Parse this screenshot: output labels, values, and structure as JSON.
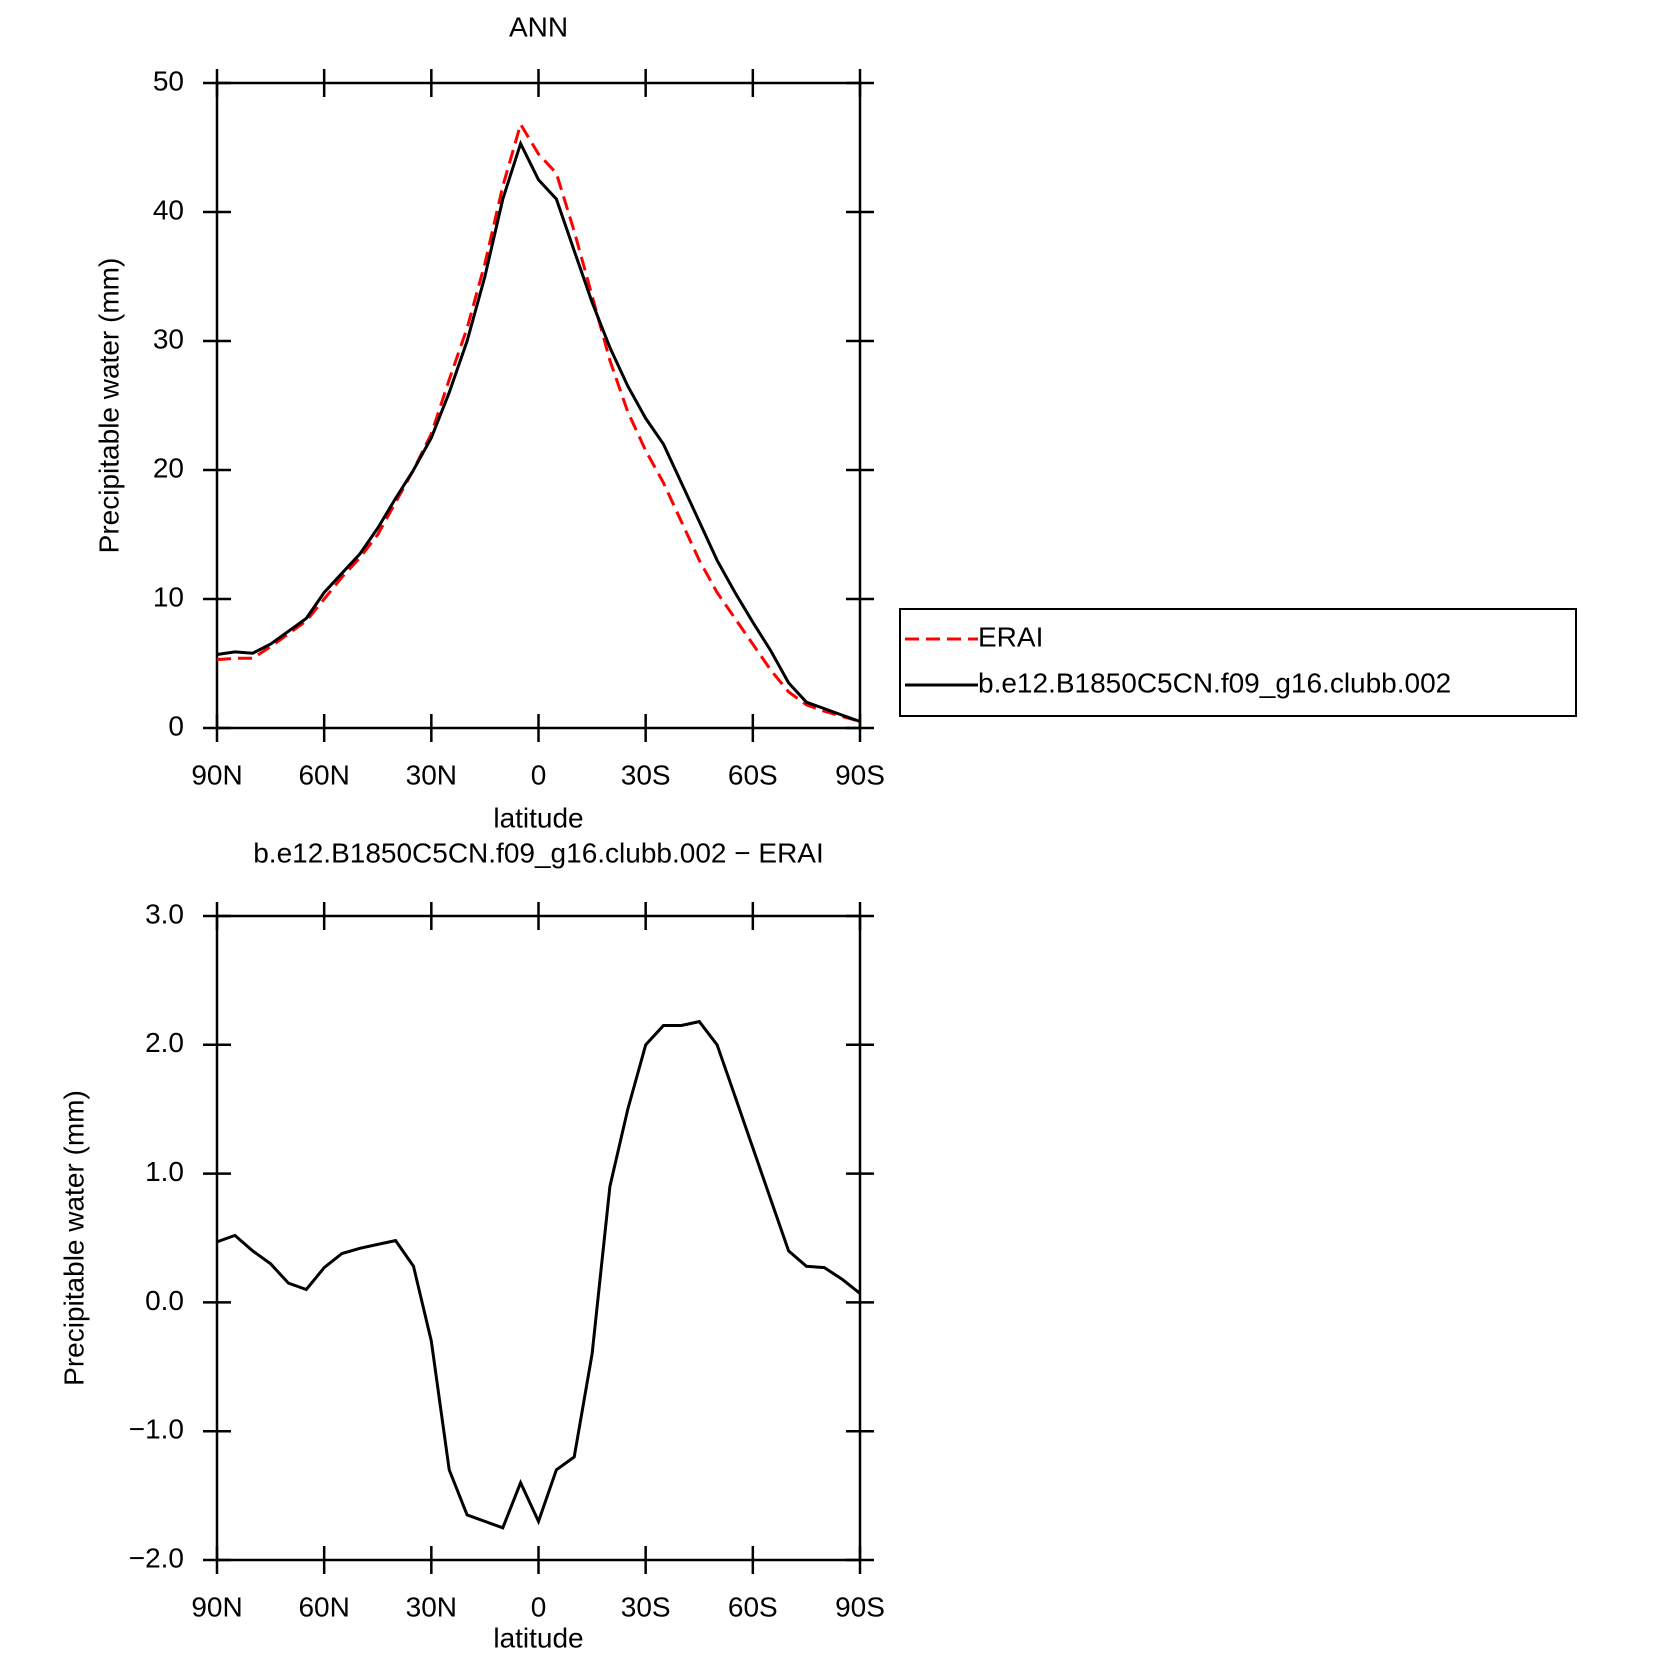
{
  "chart_data": [
    {
      "type": "line",
      "title": "ANN",
      "xlabel": "latitude",
      "ylabel": "Precipitable water (mm)",
      "x": [
        90,
        85,
        80,
        75,
        70,
        65,
        60,
        55,
        50,
        45,
        40,
        35,
        30,
        25,
        20,
        15,
        10,
        5,
        0,
        -5,
        -10,
        -15,
        -20,
        -25,
        -30,
        -35,
        -40,
        -45,
        -50,
        -55,
        -60,
        -65,
        -70,
        -75,
        -80,
        -85,
        -90
      ],
      "xlim": [
        90,
        -90
      ],
      "xticks": [
        {
          "value": 90,
          "label": "90N"
        },
        {
          "value": 60,
          "label": "60N"
        },
        {
          "value": 30,
          "label": "30N"
        },
        0,
        {
          "value": -30,
          "label": "30S"
        },
        {
          "value": -60,
          "label": "60S"
        },
        {
          "value": -90,
          "label": "90S"
        }
      ],
      "ylim": [
        0,
        50
      ],
      "yticks": [
        0,
        10,
        20,
        30,
        40,
        50
      ],
      "legend": "right",
      "series": [
        {
          "name": "ERAI",
          "color": "#ff0000",
          "line_style": "dashed",
          "values": [
            5.3,
            5.4,
            5.4,
            6.3,
            7.3,
            8.3,
            10,
            11.7,
            13.2,
            15,
            17.5,
            20,
            22.8,
            27,
            31,
            36,
            42,
            46.8,
            44.5,
            43,
            38.5,
            33.5,
            28.5,
            24.5,
            21.5,
            19,
            16,
            13,
            10.5,
            8.5,
            6.5,
            4.5,
            2.8,
            1.8,
            1.3,
            0.9,
            0.5
          ]
        },
        {
          "name": "b.e12.B1850C5CN.f09_g16.clubb.002",
          "color": "#000000",
          "line_style": "solid",
          "values": [
            5.7,
            5.9,
            5.8,
            6.5,
            7.5,
            8.5,
            10.5,
            12,
            13.5,
            15.5,
            17.8,
            20,
            22.5,
            26,
            30,
            35,
            41,
            45.3,
            42.5,
            41,
            37,
            33,
            29.5,
            26.5,
            24,
            22,
            19,
            16,
            13,
            10.5,
            8.2,
            6,
            3.5,
            2,
            1.5,
            1,
            0.5
          ]
        }
      ]
    },
    {
      "type": "line",
      "title": "b.e12.B1850C5CN.f09_g16.clubb.002 − ERAI",
      "xlabel": "latitude",
      "ylabel": "Precipitable water (mm)",
      "x": [
        90,
        85,
        80,
        75,
        70,
        65,
        60,
        55,
        50,
        45,
        40,
        35,
        30,
        25,
        20,
        15,
        10,
        5,
        0,
        -5,
        -10,
        -15,
        -20,
        -25,
        -30,
        -35,
        -40,
        -45,
        -50,
        -55,
        -60,
        -65,
        -70,
        -75,
        -80,
        -85,
        -90
      ],
      "xlim": [
        90,
        -90
      ],
      "xticks": [
        {
          "value": 90,
          "label": "90N"
        },
        {
          "value": 60,
          "label": "60N"
        },
        {
          "value": 30,
          "label": "30N"
        },
        0,
        {
          "value": -30,
          "label": "30S"
        },
        {
          "value": -60,
          "label": "60S"
        },
        {
          "value": -90,
          "label": "90S"
        }
      ],
      "ylim": [
        -2,
        3
      ],
      "yticks": [
        {
          "value": -2,
          "label": "−2.0"
        },
        {
          "value": -1,
          "label": "−1.0"
        },
        {
          "value": 0,
          "label": "0.0"
        },
        {
          "value": 1,
          "label": "1.0"
        },
        {
          "value": 2,
          "label": "2.0"
        },
        {
          "value": 3,
          "label": "3.0"
        }
      ],
      "series": [
        {
          "color": "#000000",
          "line_style": "solid",
          "values": [
            0.47,
            0.52,
            0.4,
            0.3,
            0.15,
            0.1,
            0.27,
            0.38,
            0.42,
            0.45,
            0.48,
            0.28,
            -0.3,
            -1.3,
            -1.65,
            -1.7,
            -1.75,
            -1.4,
            -1.7,
            -1.3,
            -1.2,
            -0.4,
            0.9,
            1.5,
            2.0,
            2.15,
            2.15,
            2.18,
            2.0,
            1.6,
            1.2,
            0.8,
            0.4,
            0.28,
            0.27,
            0.18,
            0.07
          ]
        }
      ]
    }
  ]
}
